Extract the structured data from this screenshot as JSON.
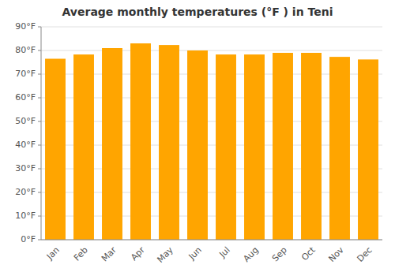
{
  "chart_data": {
    "type": "bar",
    "title": "Average monthly temperatures (°F ) in Teni",
    "categories": [
      "Jan",
      "Feb",
      "Mar",
      "Apr",
      "May",
      "Jun",
      "Jul",
      "Aug",
      "Sep",
      "Oct",
      "Nov",
      "Dec"
    ],
    "values": [
      76.5,
      78.3,
      81.0,
      83.0,
      82.3,
      80.0,
      78.3,
      78.3,
      79.0,
      79.0,
      77.3,
      76.2
    ],
    "color": "#FFA500",
    "ylim": [
      0,
      90
    ],
    "yticks": [
      {
        "value": 0,
        "label": "0°F"
      },
      {
        "value": 10,
        "label": "10°F"
      },
      {
        "value": 20,
        "label": "20°F"
      },
      {
        "value": 30,
        "label": "30°F"
      },
      {
        "value": 40,
        "label": "40°F"
      },
      {
        "value": 50,
        "label": "50°F"
      },
      {
        "value": 60,
        "label": "60°F"
      },
      {
        "value": 70,
        "label": "70°F"
      },
      {
        "value": 80,
        "label": "80°F"
      },
      {
        "value": 90,
        "label": "90°F"
      }
    ],
    "grid": true
  }
}
